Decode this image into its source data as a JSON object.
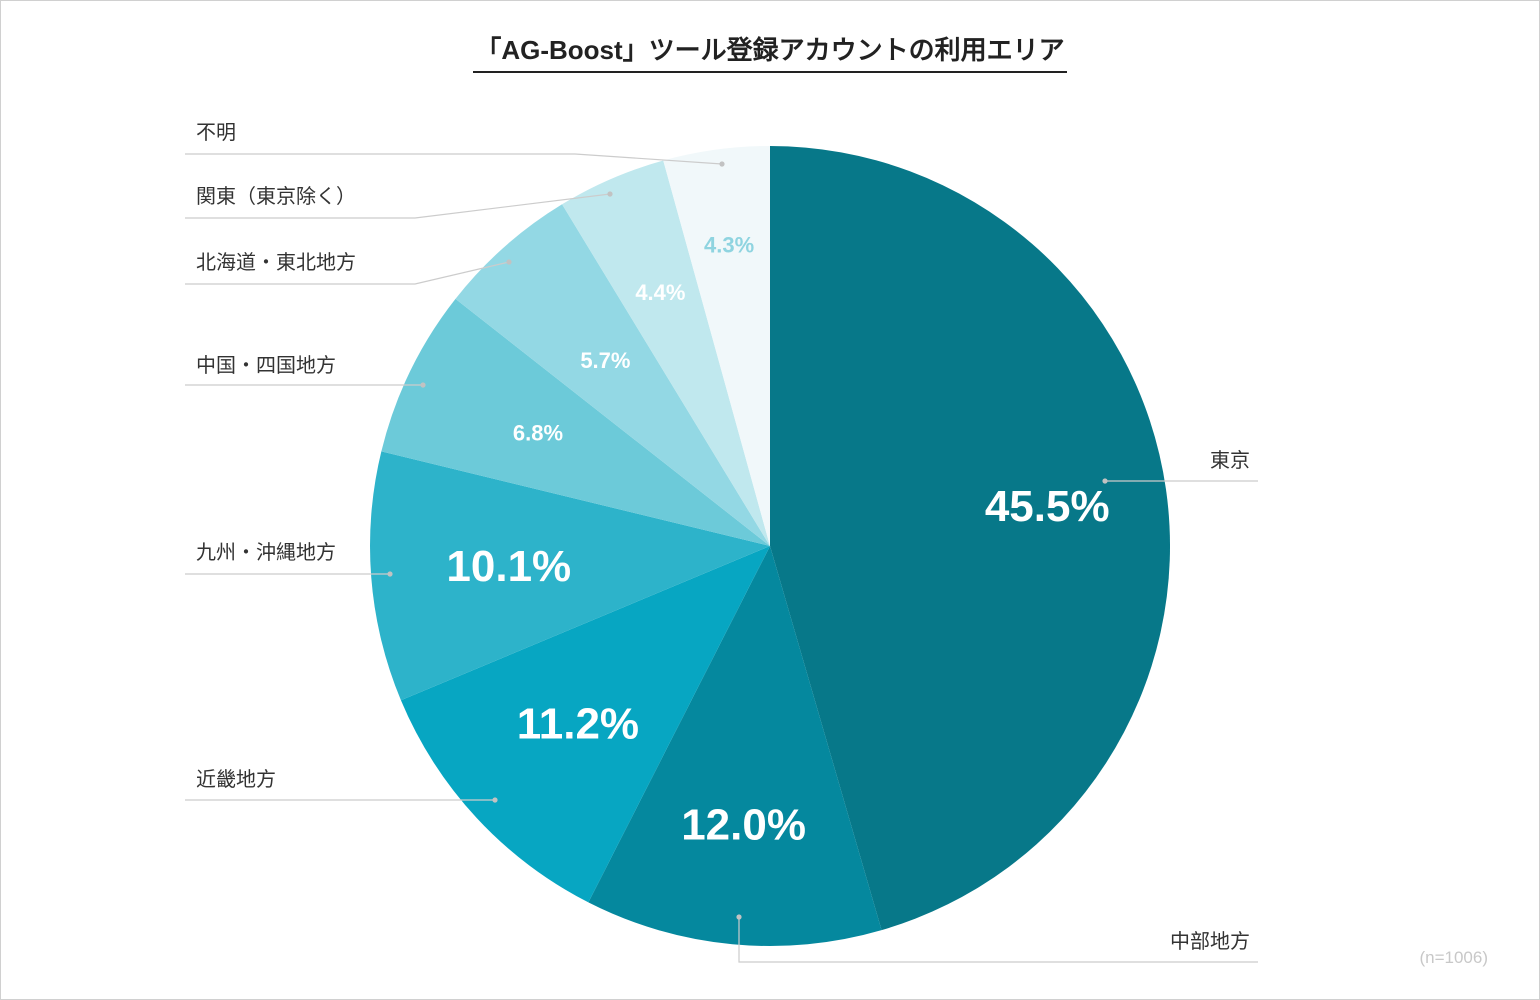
{
  "chart_data": {
    "type": "pie",
    "title": "「AG-Boost」ツール登録アカウントの利用エリア",
    "note": "(n=1006)",
    "start_angle_deg": 0,
    "direction": "clockwise",
    "slices": [
      {
        "label": "東京",
        "value": 45.5,
        "value_label": "45.5%",
        "color": "#077889",
        "label_color": "#ffffff"
      },
      {
        "label": "中部地方",
        "value": 12.0,
        "value_label": "12.0%",
        "color": "#05889e",
        "label_color": "#ffffff"
      },
      {
        "label": "近畿地方",
        "value": 11.2,
        "value_label": "11.2%",
        "color": "#07a6c2",
        "label_color": "#ffffff"
      },
      {
        "label": "九州・沖縄地方",
        "value": 10.1,
        "value_label": "10.1%",
        "color": "#2db3ca",
        "label_color": "#ffffff"
      },
      {
        "label": "中国・四国地方",
        "value": 6.8,
        "value_label": "6.8%",
        "color": "#6ccad9",
        "label_color": "#ffffff"
      },
      {
        "label": "北海道・東北地方",
        "value": 5.7,
        "value_label": "5.7%",
        "color": "#93d8e4",
        "label_color": "#ffffff"
      },
      {
        "label": "関東（東京除く）",
        "value": 4.4,
        "value_label": "4.4%",
        "color": "#c0e8ee",
        "label_color": "#ffffff"
      },
      {
        "label": "不明",
        "value": 4.3,
        "value_label": "4.3%",
        "color": "#f1f8fa",
        "label_color": "#8fd4e0"
      }
    ]
  }
}
